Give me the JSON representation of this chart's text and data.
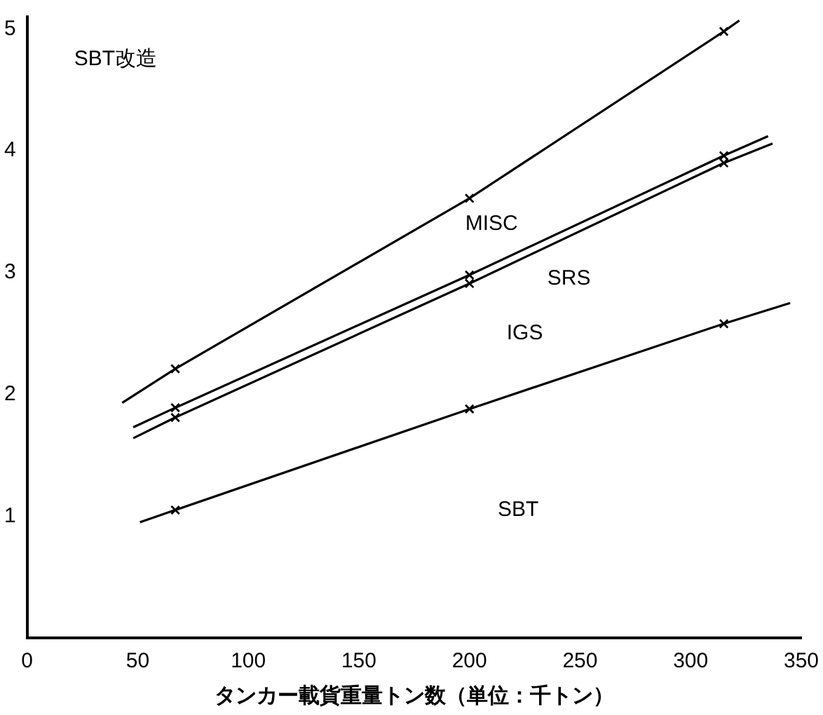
{
  "chart_data": {
    "type": "line",
    "xlabel": "タンカー載貨重量トン数（単位：千トン）",
    "xlim": [
      0,
      350
    ],
    "xticks": [
      0,
      50,
      100,
      150,
      200,
      250,
      300,
      350
    ],
    "ylim": [
      0,
      5.1
    ],
    "yticks": [
      1,
      2,
      3,
      4,
      5
    ],
    "series": [
      {
        "color": "#000000",
        "x": [
          43,
          67,
          200,
          315,
          322
        ],
        "values": [
          1.93,
          2.21,
          3.61,
          4.98,
          5.07
        ]
      },
      {
        "color": "#000000",
        "x": [
          48,
          67,
          200,
          315,
          335
        ],
        "values": [
          1.73,
          1.89,
          2.98,
          3.96,
          4.12
        ]
      },
      {
        "color": "#000000",
        "x": [
          48,
          67,
          200,
          315,
          337
        ],
        "values": [
          1.64,
          1.81,
          2.91,
          3.9,
          4.06
        ]
      },
      {
        "color": "#000000",
        "x": [
          51,
          67,
          200,
          315,
          345
        ],
        "values": [
          0.95,
          1.05,
          1.88,
          2.58,
          2.75
        ]
      }
    ],
    "annotations": [
      "SBT改造",
      "MISC",
      "SRS",
      "IGS",
      "SBT"
    ],
    "marker": "cross",
    "line_style": "solid",
    "grid": false,
    "legend": false
  }
}
